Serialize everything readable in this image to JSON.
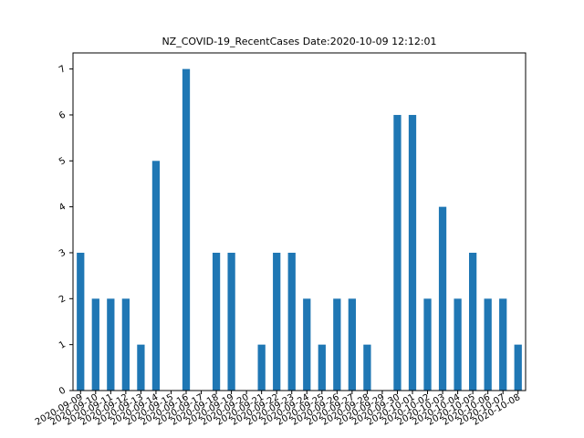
{
  "chart_data": {
    "type": "bar",
    "title": "NZ_COVID-19_RecentCases  Date:2020-10-09 12:12:01",
    "xlabel": "",
    "ylabel": "",
    "ylim": [
      0,
      7.35
    ],
    "yticks": [
      0,
      1,
      2,
      3,
      4,
      5,
      6,
      7
    ],
    "grid": false,
    "legend": "none",
    "bar_color": "#1f77b4",
    "categories": [
      "2020-09-09",
      "2020-09-10",
      "2020-09-11",
      "2020-09-12",
      "2020-09-13",
      "2020-09-14",
      "2020-09-15",
      "2020-09-16",
      "2020-09-17",
      "2020-09-18",
      "2020-09-19",
      "2020-09-20",
      "2020-09-21",
      "2020-09-22",
      "2020-09-23",
      "2020-09-24",
      "2020-09-25",
      "2020-09-26",
      "2020-09-27",
      "2020-09-28",
      "2020-09-29",
      "2020-09-30",
      "2020-10-01",
      "2020-10-02",
      "2020-10-03",
      "2020-10-04",
      "2020-10-05",
      "2020-10-06",
      "2020-10-07",
      "2020-10-08"
    ],
    "values": [
      3,
      2,
      2,
      2,
      1,
      5,
      0,
      7,
      0,
      3,
      3,
      0,
      1,
      3,
      3,
      2,
      1,
      2,
      2,
      1,
      0,
      6,
      6,
      2,
      4,
      2,
      3,
      2,
      2,
      1
    ]
  }
}
